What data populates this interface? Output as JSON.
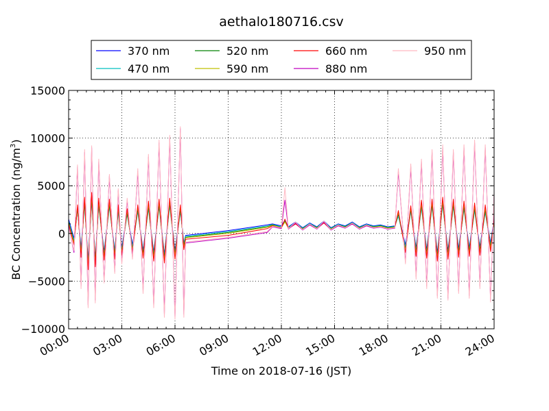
{
  "chart_data": {
    "type": "line",
    "title": "aethalo180716.csv",
    "xlabel": "Time on 2018-07-16 (JST)",
    "ylabel": "BC Concentration (ng/m³)",
    "ylabel_parts": {
      "main": "BC Concentration (ng/m",
      "sup": "3",
      "close": ")"
    },
    "xlim": [
      0,
      24
    ],
    "ylim": [
      -10000,
      15000
    ],
    "x_ticks": [
      0,
      3,
      6,
      9,
      12,
      15,
      18,
      21,
      24
    ],
    "x_tick_labels": [
      "00:00",
      "03:00",
      "06:00",
      "09:00",
      "12:00",
      "15:00",
      "18:00",
      "21:00",
      "24:00"
    ],
    "y_ticks": [
      -10000,
      -5000,
      0,
      5000,
      10000,
      15000
    ],
    "y_tick_labels": [
      "−10000",
      "−5000",
      "0",
      "5000",
      "10000",
      "15000"
    ],
    "grid": true,
    "legend_position": "top-center, above plot",
    "series": [
      {
        "name": "370 nm",
        "color": "#0000ff",
        "x": [
          0.0,
          0.3,
          0.5,
          0.7,
          0.9,
          1.1,
          1.3,
          1.5,
          1.7,
          2.0,
          2.3,
          2.6,
          2.8,
          3.0,
          3.3,
          3.6,
          3.9,
          4.2,
          4.5,
          4.8,
          5.1,
          5.4,
          5.7,
          6.0,
          6.3,
          6.5,
          6.6,
          9.0,
          11.2,
          11.5,
          12.0,
          12.2,
          12.4,
          12.8,
          13.2,
          13.6,
          14.0,
          14.4,
          14.8,
          15.2,
          15.6,
          16.0,
          16.4,
          16.8,
          17.2,
          17.6,
          18.0,
          18.4,
          18.6,
          19.0,
          19.3,
          19.6,
          19.9,
          20.2,
          20.5,
          20.8,
          21.1,
          21.4,
          21.7,
          22.0,
          22.3,
          22.6,
          22.9,
          23.2,
          23.5,
          23.8,
          24.0
        ],
        "y": [
          1500,
          -500,
          2600,
          -1500,
          3200,
          -2800,
          3600,
          -2600,
          3100,
          -1900,
          3000,
          -1800,
          2500,
          -1500,
          2200,
          -1200,
          2500,
          -1800,
          2800,
          -2000,
          3000,
          -2200,
          3100,
          -1800,
          2500,
          -1000,
          -200,
          300,
          900,
          1000,
          800,
          1400,
          700,
          1200,
          600,
          1100,
          700,
          1300,
          600,
          1000,
          800,
          1200,
          700,
          1000,
          800,
          900,
          700,
          800,
          2000,
          -1200,
          2500,
          -1500,
          2900,
          -1700,
          3000,
          -2000,
          3200,
          -1800,
          3000,
          -1600,
          2800,
          -1500,
          2600,
          -1400,
          2400,
          -1000,
          1500
        ]
      },
      {
        "name": "470 nm",
        "color": "#00bfbf",
        "x": [
          0.0,
          0.3,
          0.5,
          0.7,
          0.9,
          1.1,
          1.3,
          1.5,
          1.7,
          2.0,
          2.3,
          2.6,
          2.8,
          3.0,
          3.3,
          3.6,
          3.9,
          4.2,
          4.5,
          4.8,
          5.1,
          5.4,
          5.7,
          6.0,
          6.3,
          6.5,
          6.6,
          9.0,
          11.2,
          11.5,
          12.0,
          12.2,
          12.4,
          12.8,
          13.2,
          13.6,
          14.0,
          14.4,
          14.8,
          15.2,
          15.6,
          16.0,
          16.4,
          16.8,
          17.2,
          17.6,
          18.0,
          18.4,
          18.6,
          19.0,
          19.3,
          19.6,
          19.9,
          20.2,
          20.5,
          20.8,
          21.1,
          21.4,
          21.7,
          22.0,
          22.3,
          22.6,
          22.9,
          23.2,
          23.5,
          23.8,
          24.0
        ],
        "y": [
          1300,
          -700,
          2500,
          -1800,
          3000,
          -3000,
          3400,
          -2800,
          2900,
          -2100,
          2800,
          -2000,
          2300,
          -1700,
          2000,
          -1400,
          2300,
          -2000,
          2600,
          -2200,
          2800,
          -2400,
          2900,
          -2000,
          2300,
          -1100,
          -300,
          200,
          800,
          950,
          700,
          1300,
          650,
          1150,
          550,
          1050,
          650,
          1250,
          550,
          950,
          750,
          1150,
          650,
          950,
          750,
          850,
          650,
          750,
          1800,
          -1400,
          2300,
          -1700,
          2700,
          -1900,
          2800,
          -2200,
          3000,
          -2000,
          2800,
          -1800,
          2600,
          -1700,
          2400,
          -1600,
          2200,
          -1200,
          1300
        ]
      },
      {
        "name": "520 nm",
        "color": "#008000",
        "x": [
          0.0,
          0.3,
          0.5,
          0.7,
          0.9,
          1.1,
          1.3,
          1.5,
          1.7,
          2.0,
          2.3,
          2.6,
          2.8,
          3.0,
          3.3,
          3.6,
          3.9,
          4.2,
          4.5,
          4.8,
          5.1,
          5.4,
          5.7,
          6.0,
          6.3,
          6.5,
          6.6,
          9.0,
          11.2,
          11.5,
          12.0,
          12.2,
          12.4,
          12.8,
          13.2,
          13.6,
          14.0,
          14.4,
          14.8,
          15.2,
          15.6,
          16.0,
          16.4,
          16.8,
          17.2,
          17.6,
          18.0,
          18.4,
          18.6,
          19.0,
          19.3,
          19.6,
          19.9,
          20.2,
          20.5,
          20.8,
          21.1,
          21.4,
          21.7,
          22.0,
          22.3,
          22.6,
          22.9,
          23.2,
          23.5,
          23.8,
          24.0
        ],
        "y": [
          1200,
          -900,
          2700,
          -2000,
          3300,
          -3300,
          3800,
          -3000,
          3200,
          -2300,
          3100,
          -2200,
          2600,
          -1900,
          2200,
          -1600,
          2600,
          -2200,
          2900,
          -2400,
          3100,
          -2600,
          3200,
          -2200,
          2600,
          -1300,
          -400,
          100,
          700,
          900,
          650,
          1250,
          600,
          1100,
          500,
          1000,
          600,
          1200,
          500,
          900,
          700,
          1100,
          600,
          900,
          700,
          800,
          600,
          700,
          2100,
          -1600,
          2600,
          -1900,
          3000,
          -2100,
          3100,
          -2400,
          3300,
          -2200,
          3100,
          -2000,
          2900,
          -1900,
          2700,
          -1800,
          2500,
          -1400,
          1400
        ]
      },
      {
        "name": "590 nm",
        "color": "#bfbf00",
        "x": [
          0.0,
          0.3,
          0.5,
          0.7,
          0.9,
          1.1,
          1.3,
          1.5,
          1.7,
          2.0,
          2.3,
          2.6,
          2.8,
          3.0,
          3.3,
          3.6,
          3.9,
          4.2,
          4.5,
          4.8,
          5.1,
          5.4,
          5.7,
          6.0,
          6.3,
          6.5,
          6.6,
          9.0,
          11.2,
          11.5,
          12.0,
          12.2,
          12.4,
          12.8,
          13.2,
          13.6,
          14.0,
          14.4,
          14.8,
          15.2,
          15.6,
          16.0,
          16.4,
          16.8,
          17.2,
          17.6,
          18.0,
          18.4,
          18.6,
          19.0,
          19.3,
          19.6,
          19.9,
          20.2,
          20.5,
          20.8,
          21.1,
          21.4,
          21.7,
          22.0,
          22.3,
          22.6,
          22.9,
          23.2,
          23.5,
          23.8,
          24.0
        ],
        "y": [
          1100,
          -1000,
          2800,
          -2200,
          3500,
          -3500,
          4000,
          -3200,
          3400,
          -2500,
          3300,
          -2400,
          2800,
          -2100,
          2400,
          -1800,
          2800,
          -2400,
          3100,
          -2600,
          3300,
          -2800,
          3400,
          -2400,
          2800,
          -1500,
          -450,
          0,
          650,
          850,
          600,
          1200,
          550,
          1050,
          450,
          950,
          550,
          1150,
          450,
          850,
          650,
          1050,
          550,
          850,
          650,
          750,
          550,
          650,
          2200,
          -1800,
          2700,
          -2100,
          3200,
          -2300,
          3300,
          -2600,
          3500,
          -2400,
          3300,
          -2200,
          3100,
          -2100,
          2900,
          -2000,
          2700,
          -1600,
          1500
        ]
      },
      {
        "name": "660 nm",
        "color": "#ff0000",
        "x": [
          0.0,
          0.3,
          0.5,
          0.7,
          0.9,
          1.1,
          1.3,
          1.5,
          1.7,
          2.0,
          2.3,
          2.6,
          2.8,
          3.0,
          3.3,
          3.6,
          3.9,
          4.2,
          4.5,
          4.8,
          5.1,
          5.4,
          5.7,
          6.0,
          6.3,
          6.5,
          6.6,
          9.0,
          11.2,
          11.5,
          12.0,
          12.2,
          12.4,
          12.8,
          13.2,
          13.6,
          14.0,
          14.4,
          14.8,
          15.2,
          15.6,
          16.0,
          16.4,
          16.8,
          17.2,
          17.6,
          18.0,
          18.4,
          18.6,
          19.0,
          19.3,
          19.6,
          19.9,
          20.2,
          20.5,
          20.8,
          21.1,
          21.4,
          21.7,
          22.0,
          22.3,
          22.6,
          22.9,
          23.2,
          23.5,
          23.8,
          24.0
        ],
        "y": [
          1000,
          -1200,
          3000,
          -2500,
          3800,
          -3800,
          4300,
          -3500,
          3700,
          -2800,
          3600,
          -2700,
          3000,
          -2300,
          2600,
          -2000,
          3000,
          -2600,
          3400,
          -2900,
          3600,
          -3100,
          3700,
          -2700,
          3000,
          -1700,
          -600,
          -200,
          500,
          800,
          550,
          1500,
          500,
          1000,
          400,
          900,
          500,
          1100,
          400,
          800,
          600,
          1000,
          500,
          800,
          600,
          700,
          500,
          600,
          2400,
          -2000,
          2900,
          -2400,
          3500,
          -2600,
          3600,
          -2900,
          3800,
          -2700,
          3600,
          -2500,
          3400,
          -2400,
          3200,
          -2300,
          3000,
          -1900,
          1600
        ]
      },
      {
        "name": "880 nm",
        "color": "#bf00bf",
        "x": [
          0.0,
          0.3,
          0.5,
          0.7,
          0.9,
          1.1,
          1.3,
          1.5,
          1.7,
          2.0,
          2.3,
          2.6,
          2.8,
          3.0,
          3.3,
          3.6,
          3.9,
          4.2,
          4.5,
          4.8,
          5.1,
          5.4,
          5.7,
          6.0,
          6.3,
          6.5,
          6.6,
          9.0,
          11.2,
          11.5,
          12.0,
          12.2,
          12.4,
          12.8,
          13.2,
          13.6,
          14.0,
          14.4,
          14.8,
          15.2,
          15.6,
          16.0,
          16.4,
          16.8,
          17.2,
          17.6,
          18.0,
          18.4,
          18.6,
          19.0,
          19.3,
          19.6,
          19.9,
          20.2,
          20.5,
          20.8,
          21.1,
          21.4,
          21.7,
          22.0,
          22.3,
          22.6,
          22.9,
          23.2,
          23.5,
          23.8,
          24.0
        ],
        "y": [
          800,
          -2000,
          7000,
          -5500,
          8500,
          -7500,
          9000,
          -7000,
          7500,
          -5000,
          6000,
          -4000,
          4500,
          -3000,
          3500,
          -2500,
          6500,
          -6000,
          8000,
          -7500,
          9500,
          -8500,
          10000,
          -8800,
          11000,
          -8500,
          -1000,
          -500,
          100,
          700,
          500,
          3500,
          450,
          1100,
          350,
          900,
          450,
          1200,
          350,
          800,
          550,
          1000,
          450,
          800,
          550,
          650,
          450,
          550,
          6500,
          -3000,
          7000,
          -4500,
          7500,
          -5500,
          8500,
          -6500,
          9000,
          -6800,
          8500,
          -6000,
          9000,
          -6500,
          9500,
          -5500,
          9000,
          -7000,
          4000
        ]
      },
      {
        "name": "950 nm",
        "color": "#ffb6c1",
        "x": [
          0.0,
          0.3,
          0.5,
          0.7,
          0.9,
          1.1,
          1.3,
          1.5,
          1.7,
          2.0,
          2.3,
          2.6,
          2.8,
          3.0,
          3.3,
          3.6,
          3.9,
          4.2,
          4.5,
          4.8,
          5.1,
          5.4,
          5.7,
          6.0,
          6.3,
          6.5,
          6.6,
          9.0,
          11.2,
          11.5,
          12.0,
          12.2,
          12.4,
          12.8,
          13.2,
          13.6,
          14.0,
          14.4,
          14.8,
          15.2,
          15.6,
          16.0,
          16.4,
          16.8,
          17.2,
          17.6,
          18.0,
          18.4,
          18.6,
          19.0,
          19.3,
          19.6,
          19.9,
          20.2,
          20.5,
          20.8,
          21.1,
          21.4,
          21.7,
          22.0,
          22.3,
          22.6,
          22.9,
          23.2,
          23.5,
          23.8,
          24.0
        ],
        "y": [
          600,
          -1800,
          7200,
          -5800,
          8800,
          -7800,
          9200,
          -7300,
          7800,
          -5200,
          6200,
          -4200,
          4700,
          -3200,
          3700,
          -2700,
          6800,
          -6300,
          8300,
          -7800,
          9800,
          -8800,
          10300,
          -9000,
          11200,
          -8800,
          -900,
          -400,
          200,
          750,
          600,
          4800,
          500,
          1200,
          400,
          1000,
          500,
          1300,
          400,
          900,
          600,
          1100,
          500,
          900,
          600,
          700,
          500,
          600,
          6800,
          -3200,
          7300,
          -4800,
          7800,
          -5800,
          8800,
          -6800,
          9300,
          -7000,
          8800,
          -6300,
          9300,
          -6800,
          9800,
          -5800,
          9300,
          -7200,
          4200
        ]
      }
    ]
  }
}
